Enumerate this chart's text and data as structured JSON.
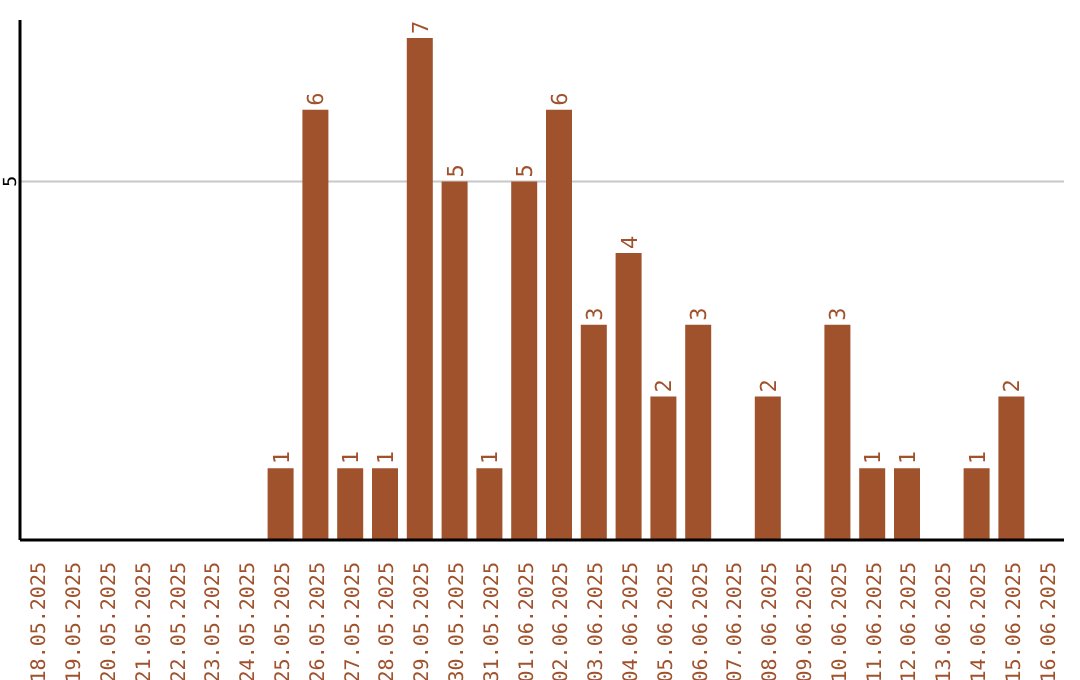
{
  "chart_data": {
    "type": "bar",
    "categories": [
      "18.05.2025",
      "19.05.2025",
      "20.05.2025",
      "21.05.2025",
      "22.05.2025",
      "23.05.2025",
      "24.05.2025",
      "25.05.2025",
      "26.05.2025",
      "27.05.2025",
      "28.05.2025",
      "29.05.2025",
      "30.05.2025",
      "31.05.2025",
      "01.06.2025",
      "02.06.2025",
      "03.06.2025",
      "04.06.2025",
      "05.06.2025",
      "06.06.2025",
      "07.06.2025",
      "08.06.2025",
      "09.06.2025",
      "10.06.2025",
      "11.06.2025",
      "12.06.2025",
      "13.06.2025",
      "14.06.2025",
      "15.06.2025",
      "16.06.2025"
    ],
    "values": [
      0,
      0,
      0,
      0,
      0,
      0,
      0,
      1,
      6,
      1,
      1,
      7,
      5,
      1,
      5,
      6,
      3,
      4,
      2,
      3,
      0,
      2,
      0,
      3,
      1,
      1,
      0,
      1,
      2,
      0
    ],
    "value_labels": [
      null,
      null,
      null,
      null,
      null,
      null,
      null,
      "1",
      "6",
      "1",
      "1",
      "7",
      "5",
      "1",
      "5",
      "6",
      "3",
      "4",
      "2",
      "3",
      null,
      "2",
      null,
      "3",
      "1",
      "1",
      null,
      "1",
      "2",
      null
    ],
    "color": "#a0522d",
    "ylim": [
      0,
      7.25
    ],
    "yticks": [
      5
    ],
    "grid": "y"
  }
}
